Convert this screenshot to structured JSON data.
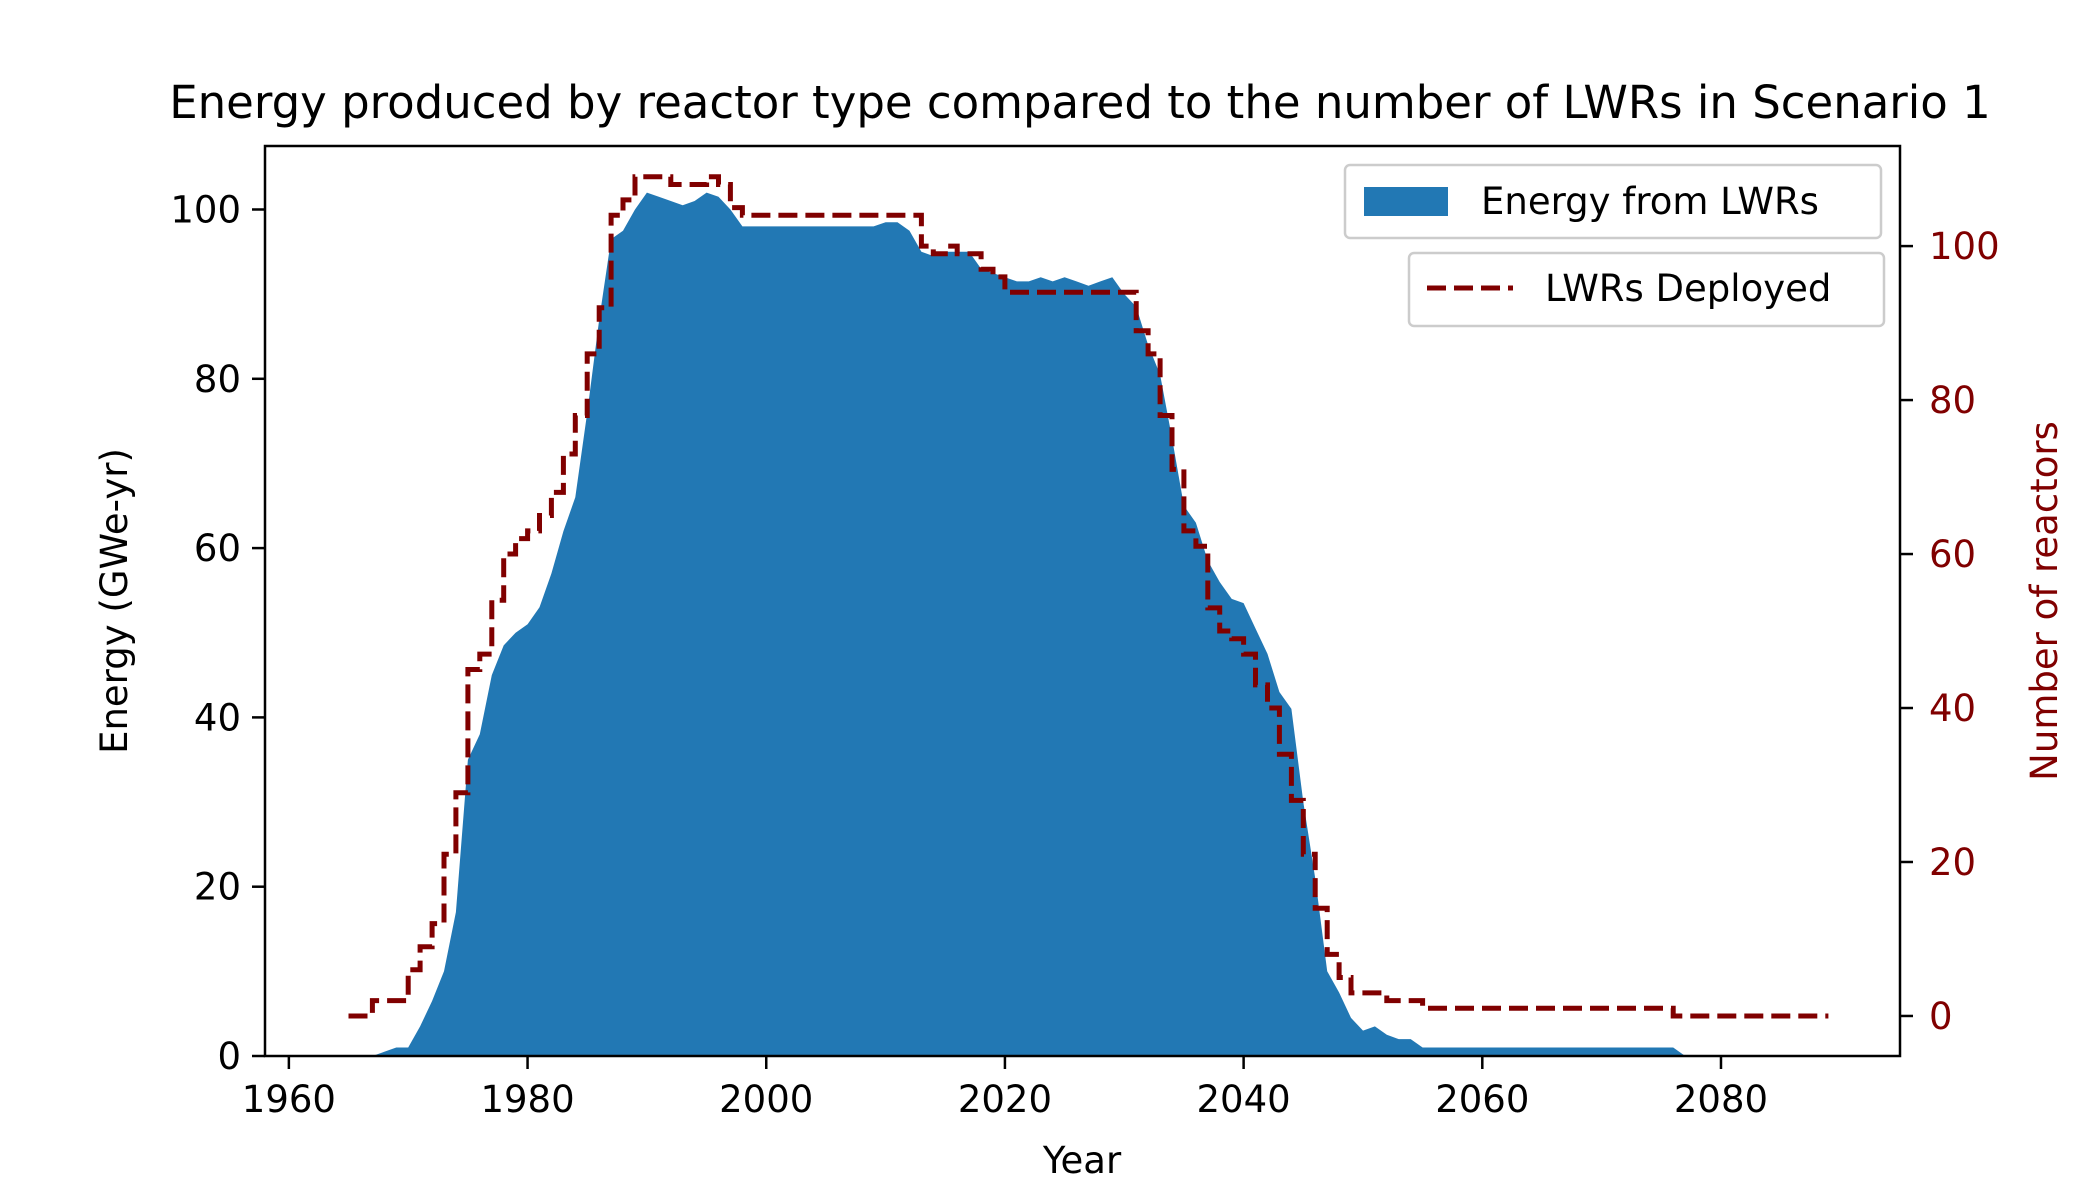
{
  "chart_data": {
    "type": "area",
    "title": "Energy produced by reactor type compared to the number of LWRs in Scenario 1",
    "xlabel": "Year",
    "ylabel": "Energy (GWe-yr)",
    "ylabel_right": "Number of reactors",
    "xlim": [
      1958,
      2095
    ],
    "ylim": [
      0,
      107.5
    ],
    "ylim_right": [
      -5.2,
      113
    ],
    "xticks": [
      1960,
      1980,
      2000,
      2020,
      2040,
      2060,
      2080
    ],
    "xtick_labels": [
      "1960",
      "1980",
      "2000",
      "2020",
      "2040",
      "2060",
      "2080"
    ],
    "yticks": [
      0,
      20,
      40,
      60,
      80,
      100
    ],
    "ytick_labels": [
      "0",
      "20",
      "40",
      "60",
      "80",
      "100"
    ],
    "yticks_right": [
      0,
      20,
      40,
      60,
      80,
      100
    ],
    "ytick_labels_right": [
      "0",
      "20",
      "40",
      "60",
      "80",
      "100"
    ],
    "grid": false,
    "legend": [
      {
        "name": "Energy from LWRs",
        "placement": "upper-right"
      },
      {
        "name": "LWRs Deployed",
        "placement": "upper-right-below"
      }
    ],
    "colors": {
      "energy": "#2278b4",
      "deployed": "#800000",
      "right_axis": "#800000"
    },
    "series": [
      {
        "name": "Energy from LWRs",
        "axis": "left",
        "kind": "area",
        "x": [
          1965,
          1966,
          1967,
          1968,
          1969,
          1970,
          1971,
          1972,
          1973,
          1974,
          1975,
          1976,
          1977,
          1978,
          1979,
          1980,
          1981,
          1982,
          1983,
          1984,
          1985,
          1986,
          1987,
          1988,
          1989,
          1990,
          1991,
          1992,
          1993,
          1994,
          1995,
          1996,
          1997,
          1998,
          1999,
          2000,
          2001,
          2002,
          2003,
          2004,
          2005,
          2006,
          2007,
          2008,
          2009,
          2010,
          2011,
          2012,
          2013,
          2014,
          2015,
          2016,
          2017,
          2018,
          2019,
          2020,
          2021,
          2022,
          2023,
          2024,
          2025,
          2026,
          2027,
          2028,
          2029,
          2030,
          2031,
          2032,
          2033,
          2034,
          2035,
          2036,
          2037,
          2038,
          2039,
          2040,
          2041,
          2042,
          2043,
          2044,
          2045,
          2046,
          2047,
          2048,
          2049,
          2050,
          2051,
          2052,
          2053,
          2054,
          2055,
          2056,
          2057,
          2058,
          2059,
          2060,
          2061,
          2062,
          2063,
          2064,
          2065,
          2066,
          2067,
          2068,
          2069,
          2070,
          2071,
          2072,
          2073,
          2074,
          2075,
          2076,
          2077
        ],
        "values": [
          0,
          0,
          0,
          0.5,
          1,
          1,
          3.5,
          6.5,
          10,
          17,
          35,
          38,
          45,
          48.5,
          50,
          51,
          53,
          57,
          62,
          66,
          76,
          87,
          96.5,
          97.5,
          100,
          102,
          101.5,
          101,
          100.5,
          101,
          102,
          101.5,
          100,
          98,
          98,
          98,
          98,
          98,
          98,
          98,
          98,
          98,
          98,
          98,
          98,
          98.5,
          98.5,
          97.5,
          95,
          94.5,
          95,
          95,
          95,
          93,
          92.5,
          92,
          91.5,
          91.5,
          92,
          91.5,
          92,
          91.5,
          91,
          91.5,
          92,
          90,
          88.5,
          84,
          80.5,
          73,
          65,
          63,
          58.5,
          56,
          54,
          53.5,
          50.5,
          47.5,
          43,
          41,
          30,
          21,
          10,
          7.5,
          4.5,
          3,
          3.5,
          2.5,
          2,
          2,
          1,
          1,
          1,
          1,
          1,
          1,
          1,
          1,
          1,
          1,
          1,
          1,
          1,
          1,
          1,
          1,
          1,
          1,
          1,
          1,
          1,
          1,
          0
        ]
      },
      {
        "name": "LWRs Deployed",
        "axis": "right",
        "kind": "step",
        "x": [
          1965,
          1966,
          1967,
          1968,
          1969,
          1970,
          1971,
          1972,
          1973,
          1974,
          1975,
          1976,
          1977,
          1978,
          1979,
          1980,
          1981,
          1982,
          1983,
          1984,
          1985,
          1986,
          1987,
          1988,
          1989,
          1990,
          1991,
          1992,
          1993,
          1994,
          1995,
          1996,
          1997,
          1998,
          1999,
          2000,
          2001,
          2002,
          2003,
          2004,
          2005,
          2006,
          2007,
          2008,
          2009,
          2010,
          2011,
          2012,
          2013,
          2014,
          2015,
          2016,
          2017,
          2018,
          2019,
          2020,
          2021,
          2022,
          2023,
          2024,
          2025,
          2026,
          2027,
          2028,
          2029,
          2030,
          2031,
          2032,
          2033,
          2034,
          2035,
          2036,
          2037,
          2038,
          2039,
          2040,
          2041,
          2042,
          2043,
          2044,
          2045,
          2046,
          2047,
          2048,
          2049,
          2050,
          2051,
          2052,
          2053,
          2054,
          2055,
          2056,
          2057,
          2058,
          2059,
          2060,
          2061,
          2062,
          2063,
          2064,
          2065,
          2066,
          2067,
          2068,
          2069,
          2070,
          2071,
          2072,
          2073,
          2074,
          2075,
          2076,
          2077,
          2078,
          2079,
          2080,
          2081,
          2082,
          2083,
          2084,
          2085,
          2086,
          2087,
          2088,
          2089
        ],
        "values": [
          0,
          0,
          0,
          2,
          2,
          2,
          6,
          9,
          12,
          21,
          29,
          45,
          47,
          54,
          60,
          62,
          63,
          65,
          68,
          73,
          78,
          86,
          92,
          104,
          106,
          109,
          109,
          109,
          108,
          108,
          108,
          109,
          108,
          105,
          104,
          104,
          104,
          104,
          104,
          104,
          104,
          104,
          104,
          104,
          104,
          104,
          104,
          104,
          104,
          100,
          99,
          100,
          99,
          99,
          97,
          96,
          94,
          94,
          94,
          94,
          94,
          94,
          94,
          94,
          94,
          94,
          94,
          89,
          86,
          78,
          71,
          63,
          61,
          53,
          50,
          49,
          47,
          43,
          40,
          34,
          28,
          21,
          14,
          8,
          5,
          3,
          3,
          3,
          2,
          2,
          2,
          1,
          1,
          1,
          1,
          1,
          1,
          1,
          1,
          1,
          1,
          1,
          1,
          1,
          1,
          1,
          1,
          1,
          1,
          1,
          1,
          1,
          0,
          0,
          0,
          0,
          0,
          0,
          0,
          0,
          0,
          0,
          0,
          0,
          0
        ]
      }
    ]
  }
}
